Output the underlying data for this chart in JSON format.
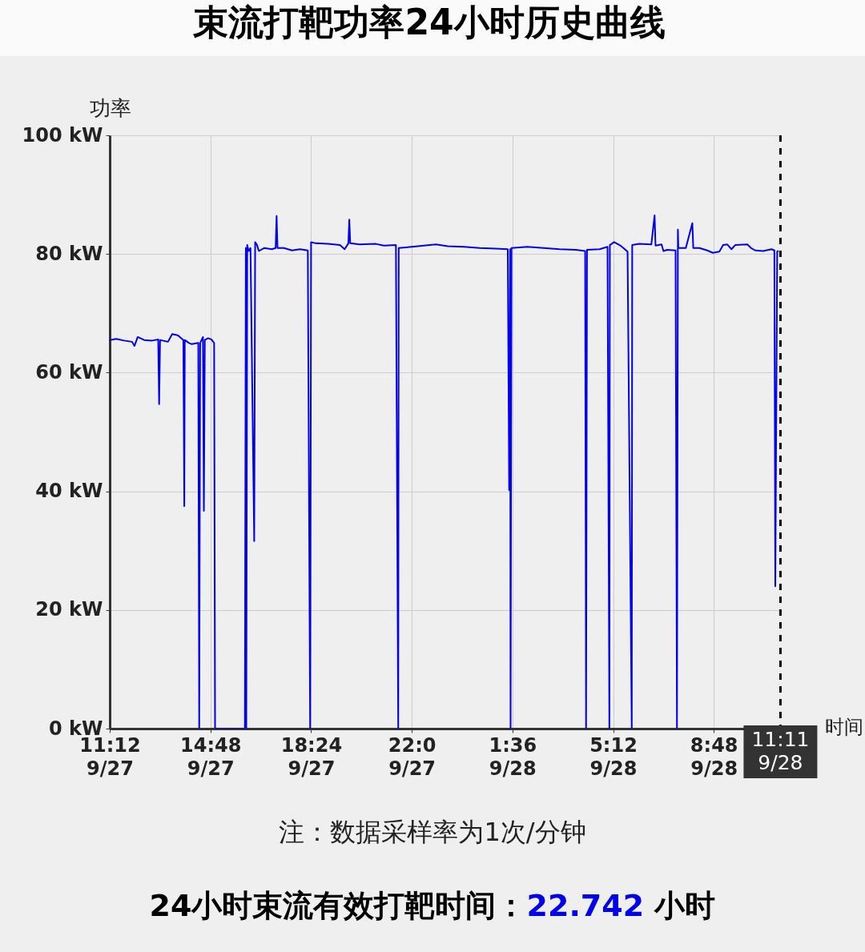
{
  "chart_data": {
    "type": "line",
    "title": "束流打靶功率24小时历史曲线",
    "xlabel": "时间",
    "ylabel": "功率",
    "x": [
      "--09-27T11:12",
      "--09-27T11:26",
      "--09-27T11:43",
      "--09-27T12:00",
      "--09-27T12:05",
      "--09-27T12:12",
      "--09-27T12:26",
      "--09-27T12:43",
      "--09-27T12:56",
      "--09-27T12:58",
      "--09-27T13:00",
      "--09-27T13:17",
      "--09-27T13:26",
      "--09-27T13:38",
      "--09-27T13:50",
      "--09-27T13:52",
      "--09-27T13:53",
      "--09-27T14:02",
      "--09-27T14:08",
      "--09-27T14:22",
      "--09-27T14:24",
      "--09-27T14:26",
      "--09-27T14:32",
      "--09-27T14:34",
      "--09-27T14:36",
      "--09-27T14:43",
      "--09-27T14:50",
      "--09-27T14:56",
      "--09-27T14:58",
      "--09-27T15:00",
      "--09-27T16:02",
      "--09-27T16:04",
      "--09-27T16:05",
      "--09-27T16:07",
      "--09-27T16:10",
      "--09-27T16:14",
      "--09-27T16:22",
      "--09-27T16:24",
      "--09-27T16:28",
      "--09-27T16:32",
      "--09-27T16:43",
      "--09-27T17:00",
      "--09-27T17:08",
      "--09-27T17:10",
      "--09-27T17:12",
      "--09-27T17:26",
      "--09-27T17:43",
      "--09-27T18:00",
      "--09-27T18:17",
      "--09-27T18:22",
      "--09-27T18:24",
      "--09-27T18:34",
      "--09-27T19:00",
      "--09-27T19:26",
      "--09-27T19:36",
      "--09-27T19:44",
      "--09-27T19:46",
      "--09-27T19:48",
      "--09-27T20:08",
      "--09-27T20:43",
      "--09-27T21:00",
      "--09-27T21:26",
      "--09-27T21:31",
      "--09-27T21:32",
      "--09-27T22:00",
      "--09-27T22:26",
      "--09-27T22:52",
      "--09-27T23:17",
      "--09-27T23:52",
      "--09-28T00:26",
      "--09-28T01:00",
      "--09-28T01:26",
      "--09-28T01:29",
      "--09-28T01:31",
      "--09-28T01:32",
      "--09-28T01:34",
      "--09-28T02:08",
      "--09-28T02:43",
      "--09-28T03:17",
      "--09-28T03:52",
      "--09-28T04:12",
      "--09-28T04:14",
      "--09-28T04:16",
      "--09-28T04:43",
      "--09-28T05:00",
      "--09-28T05:04",
      "--09-28T05:05",
      "--09-28T05:14",
      "--09-28T05:26",
      "--09-28T05:34",
      "--09-28T05:43",
      "--09-28T05:52",
      "--09-28T05:53",
      "--09-28T06:08",
      "--09-28T06:34",
      "--09-28T06:41",
      "--09-28T06:43",
      "--09-28T06:56",
      "--09-28T07:00",
      "--09-28T07:08",
      "--09-28T07:26",
      "--09-28T07:29",
      "--09-28T07:31",
      "--09-28T07:32",
      "--09-28T07:48",
      "--09-28T08:02",
      "--09-28T08:04",
      "--09-28T08:17",
      "--09-28T08:34",
      "--09-28T08:46",
      "--09-28T09:00",
      "--09-28T09:08",
      "--09-28T09:17",
      "--09-28T09:26",
      "--09-28T09:34",
      "--09-28T10:00",
      "--09-28T10:08",
      "--09-28T10:17",
      "--09-28T10:34",
      "--09-28T10:52",
      "--09-28T10:58",
      "--09-28T11:00",
      "--09-28T11:04",
      "--09-28T11:07"
    ],
    "series": [
      {
        "color": "#0000ee",
        "values": [
          65.5,
          65.7,
          65.4,
          65.2,
          64.5,
          66,
          65.5,
          65.4,
          65.6,
          54.7,
          65.5,
          65.2,
          66.5,
          66.3,
          65.5,
          37.5,
          65.5,
          65,
          64.8,
          65,
          0,
          65,
          66,
          36.7,
          65.5,
          65.8,
          65.6,
          65,
          0,
          0,
          0,
          81,
          0,
          81.5,
          80.5,
          81,
          31.6,
          82,
          81.5,
          80.5,
          81,
          80.8,
          81,
          86.4,
          81,
          81,
          80.6,
          80.8,
          80.6,
          0,
          82,
          81.8,
          81.7,
          81.5,
          80.8,
          81.8,
          85.8,
          81.8,
          81.6,
          81.7,
          81.4,
          81.5,
          0,
          81,
          81.2,
          81.4,
          81.6,
          81.3,
          81.2,
          81,
          80.9,
          80.8,
          40.2,
          80.8,
          0,
          81,
          81.2,
          81,
          80.8,
          80.7,
          80.5,
          0,
          80.7,
          80.8,
          81.2,
          0,
          81.5,
          82,
          81.5,
          81,
          80.4,
          0,
          81.5,
          81.7,
          81.6,
          86.5,
          81.4,
          81.6,
          80.5,
          80.7,
          80.6,
          0,
          84.1,
          81,
          81,
          85.2,
          81,
          81,
          80.6,
          80.2,
          80.4,
          81.5,
          81.6,
          80.8,
          81.5,
          81.6,
          81,
          80.6,
          80.5,
          80.8,
          80.6,
          24,
          80.4,
          80.5
        ]
      }
    ],
    "xlim": [
      "--09-27T11:12",
      "--09-28T11:12"
    ],
    "xticks": [
      {
        "value": "--09-27T11:12",
        "label": "11:12\n9/27"
      },
      {
        "value": "--09-27T14:48",
        "label": "14:48\n9/27"
      },
      {
        "value": "--09-27T18:24",
        "label": "18:24\n9/27"
      },
      {
        "value": "--09-27T22:00",
        "label": "22:0\n9/27"
      },
      {
        "value": "--09-28T01:36",
        "label": "1:36\n9/28"
      },
      {
        "value": "--09-28T05:12",
        "label": "5:12\n9/28"
      },
      {
        "value": "--09-28T08:48",
        "label": "8:48\n9/28"
      }
    ],
    "ylim": [
      0,
      100
    ],
    "yticks": [
      {
        "value": 0,
        "label": "0 kW"
      },
      {
        "value": 20,
        "label": "20 kW"
      },
      {
        "value": 40,
        "label": "40 kW"
      },
      {
        "value": 60,
        "label": "60 kW"
      },
      {
        "value": 80,
        "label": "80 kW"
      },
      {
        "value": 100,
        "label": "100 kW"
      }
    ],
    "grid": true,
    "line_style": "solid",
    "ref_lines": [
      {
        "axis": "x",
        "value": "--09-28T11:11",
        "label": "11:11\n9/28",
        "color": "#000000",
        "line_style": "dashed"
      }
    ],
    "annotations": [
      "注：数据采样率为1次/分钟",
      "24小时束流有效打靶时间：22.742 小时"
    ]
  }
}
